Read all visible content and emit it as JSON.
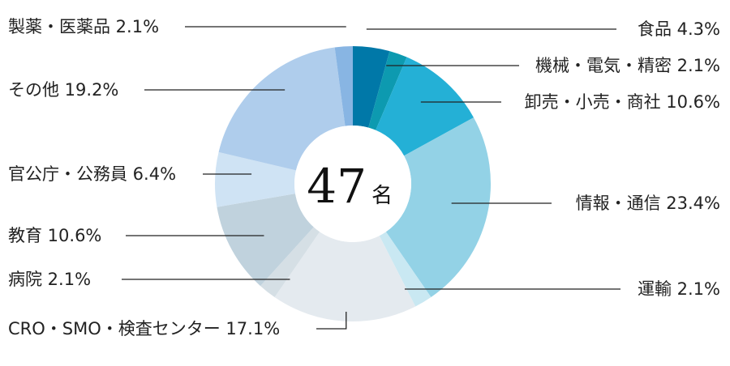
{
  "chart_data": {
    "type": "pie",
    "total": "47",
    "unit": "名",
    "slices": [
      {
        "label": "食品",
        "percent": "4.3%",
        "value": 4.3,
        "color": "#0078a8"
      },
      {
        "label": "機械・電気・精密",
        "percent": "2.1%",
        "value": 2.1,
        "color": "#0d9ab0"
      },
      {
        "label": "卸売・小売・商社",
        "percent": "10.6%",
        "value": 10.6,
        "color": "#24b0d6"
      },
      {
        "label": "情報・通信",
        "percent": "23.4%",
        "value": 23.4,
        "color": "#93d2e6"
      },
      {
        "label": "運輸",
        "percent": "2.1%",
        "value": 2.1,
        "color": "#c9e8f2"
      },
      {
        "label": "CRO・SMO・検査センター",
        "percent": "17.1%",
        "value": 17.1,
        "color": "#e4eaef"
      },
      {
        "label": "病院",
        "percent": "2.1%",
        "value": 2.1,
        "color": "#d5dfe5"
      },
      {
        "label": "教育",
        "percent": "10.6%",
        "value": 10.6,
        "color": "#c0d2dd"
      },
      {
        "label": "官公庁・公務員",
        "percent": "6.4%",
        "value": 6.4,
        "color": "#cfe3f4"
      },
      {
        "label": "その他",
        "percent": "19.2%",
        "value": 19.2,
        "color": "#afcdec"
      },
      {
        "label": "製薬・医薬品",
        "percent": "2.1%",
        "value": 2.1,
        "color": "#88b5e3"
      }
    ]
  }
}
